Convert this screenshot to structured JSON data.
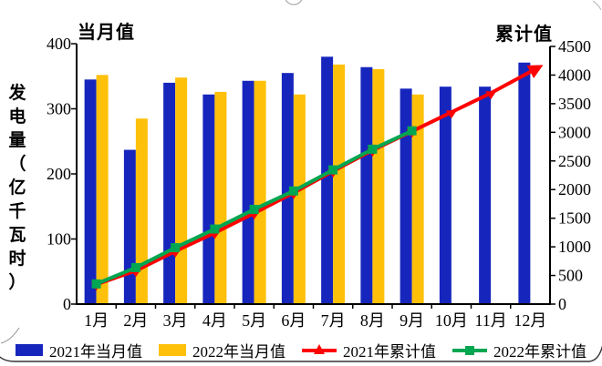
{
  "chart_data": {
    "type": "bar+line",
    "categories": [
      "1月",
      "2月",
      "3月",
      "4月",
      "5月",
      "6月",
      "7月",
      "8月",
      "9月",
      "10月",
      "11月",
      "12月"
    ],
    "series": [
      {
        "name": "2021年当月值",
        "kind": "bar",
        "axis": "left",
        "color": "#1626bd",
        "values": [
          345,
          237,
          340,
          322,
          343,
          355,
          380,
          364,
          331,
          334,
          334,
          371
        ]
      },
      {
        "name": "2022年当月值",
        "kind": "bar",
        "axis": "left",
        "color": "#ffc00a",
        "values": [
          352,
          285,
          348,
          326,
          343,
          322,
          368,
          361,
          322,
          null,
          null,
          null
        ]
      },
      {
        "name": "2021年累计值",
        "kind": "line",
        "marker": "triangle",
        "axis": "right",
        "color": "#fe0000",
        "values": [
          345,
          582,
          922,
          1244,
          1587,
          1942,
          2322,
          2686,
          3017,
          3351,
          3685,
          4056
        ]
      },
      {
        "name": "2022年累计值",
        "kind": "line",
        "marker": "square",
        "axis": "right",
        "color": "#00a651",
        "values": [
          352,
          637,
          985,
          1311,
          1654,
          1976,
          2344,
          2705,
          3027,
          null,
          null,
          null
        ]
      }
    ],
    "axes": {
      "left": {
        "top_label": "当月值",
        "title": "发电量（亿千瓦时）",
        "min": 0,
        "max": 400,
        "ticks": [
          0,
          100,
          200,
          300,
          400
        ]
      },
      "right": {
        "top_label": "累计值",
        "min": 0,
        "max": 4500,
        "ticks": [
          0,
          500,
          1000,
          1500,
          2000,
          2500,
          3000,
          3500,
          4000,
          4500
        ]
      }
    },
    "legend_position": "bottom",
    "grid": false
  }
}
